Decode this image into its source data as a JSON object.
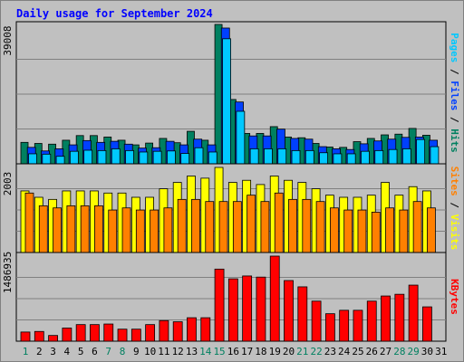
{
  "chart_data": {
    "type": "bar",
    "title": "Daily usage for September 2024",
    "categories": [
      "1",
      "2",
      "3",
      "4",
      "5",
      "6",
      "7",
      "8",
      "9",
      "10",
      "11",
      "12",
      "13",
      "14",
      "15",
      "16",
      "17",
      "18",
      "19",
      "20",
      "21",
      "22",
      "23",
      "24",
      "25",
      "26",
      "27",
      "28",
      "29",
      "30",
      "31"
    ],
    "weekend_days": [
      "1",
      "7",
      "8",
      "14",
      "15",
      "21",
      "22",
      "28",
      "29"
    ],
    "panels": [
      {
        "id": "top",
        "ymax": 39008,
        "ymax_label": "39008",
        "right_labels": [
          {
            "text": "Pages",
            "color": "#00c8ff"
          },
          {
            "text": " / ",
            "color": "#000000"
          },
          {
            "text": "Files",
            "color": "#0040ff"
          },
          {
            "text": " / ",
            "color": "#000000"
          },
          {
            "text": "Hits",
            "color": "#008060"
          }
        ],
        "series": [
          {
            "name": "Hits",
            "color": "#008060",
            "values": [
              6000,
              5700,
              5500,
              6600,
              7900,
              7900,
              7500,
              6600,
              5300,
              5800,
              7100,
              5900,
              9100,
              6600,
              39008,
              18000,
              8500,
              8500,
              10400,
              7500,
              7300,
              5700,
              4700,
              4600,
              6200,
              7100,
              8100,
              8300,
              9900,
              8000,
              null
            ]
          },
          {
            "name": "Files",
            "color": "#0040ff",
            "values": [
              4600,
              3600,
              4200,
              5300,
              6500,
              6000,
              6300,
              5500,
              4400,
              4500,
              6300,
              5300,
              6900,
              5300,
              38000,
              17300,
              7800,
              7800,
              9700,
              7100,
              6900,
              4800,
              4200,
              4000,
              5600,
              6400,
              6900,
              7400,
              7500,
              6600,
              null
            ]
          },
          {
            "name": "Pages",
            "color": "#00c8ff",
            "values": [
              2800,
              2700,
              2100,
              3500,
              3800,
              3700,
              4200,
              3700,
              3300,
              3500,
              3600,
              2900,
              4500,
              3300,
              35000,
              14700,
              4200,
              4200,
              4200,
              3700,
              3700,
              3100,
              2800,
              2800,
              3500,
              3700,
              4000,
              4200,
              6800,
              4800,
              null
            ]
          }
        ]
      },
      {
        "id": "middle",
        "ymax": 2003,
        "ymax_label": "2003",
        "right_labels": [
          {
            "text": "Sites",
            "color": "#ff8000"
          },
          {
            "text": " / ",
            "color": "#000000"
          },
          {
            "text": "Visits",
            "color": "#ffff00"
          }
        ],
        "series": [
          {
            "name": "Visits",
            "color": "#ffff00",
            "values": [
              1450,
              1300,
              1250,
              1450,
              1450,
              1450,
              1400,
              1400,
              1300,
              1300,
              1500,
              1650,
              1800,
              1750,
              2003,
              1650,
              1700,
              1600,
              1800,
              1700,
              1650,
              1500,
              1350,
              1300,
              1300,
              1350,
              1650,
              1350,
              1550,
              1450,
              null
            ]
          },
          {
            "name": "Sites",
            "color": "#ff8000",
            "values": [
              1400,
              1100,
              1050,
              1100,
              1100,
              1100,
              1000,
              1050,
              1000,
              1000,
              1050,
              1250,
              1250,
              1200,
              1200,
              1200,
              1350,
              1200,
              1400,
              1250,
              1250,
              1200,
              1050,
              1000,
              1000,
              950,
              1050,
              1000,
              1200,
              1050,
              null
            ]
          }
        ]
      },
      {
        "id": "bottom",
        "ymax": 1486935,
        "ymax_label": "1486935",
        "right_labels": [
          {
            "text": "KBytes",
            "color": "#ff0000"
          }
        ],
        "series": [
          {
            "name": "KBytes",
            "color": "#ff0000",
            "values": [
              160000,
              170000,
              100000,
              230000,
              290000,
              290000,
              300000,
              210000,
              210000,
              290000,
              360000,
              340000,
              410000,
              410000,
              1260000,
              1090000,
              1140000,
              1120000,
              1486935,
              1060000,
              950000,
              700000,
              480000,
              540000,
              540000,
              700000,
              790000,
              820000,
              980000,
              600000,
              null
            ]
          }
        ]
      }
    ],
    "colors": {
      "background": "#c0c0c0",
      "title": "#0000ff",
      "gridline": "#808080",
      "weekday_label": "#0000ff",
      "weekend_label": "#008060",
      "tick_label": "#000000"
    }
  }
}
